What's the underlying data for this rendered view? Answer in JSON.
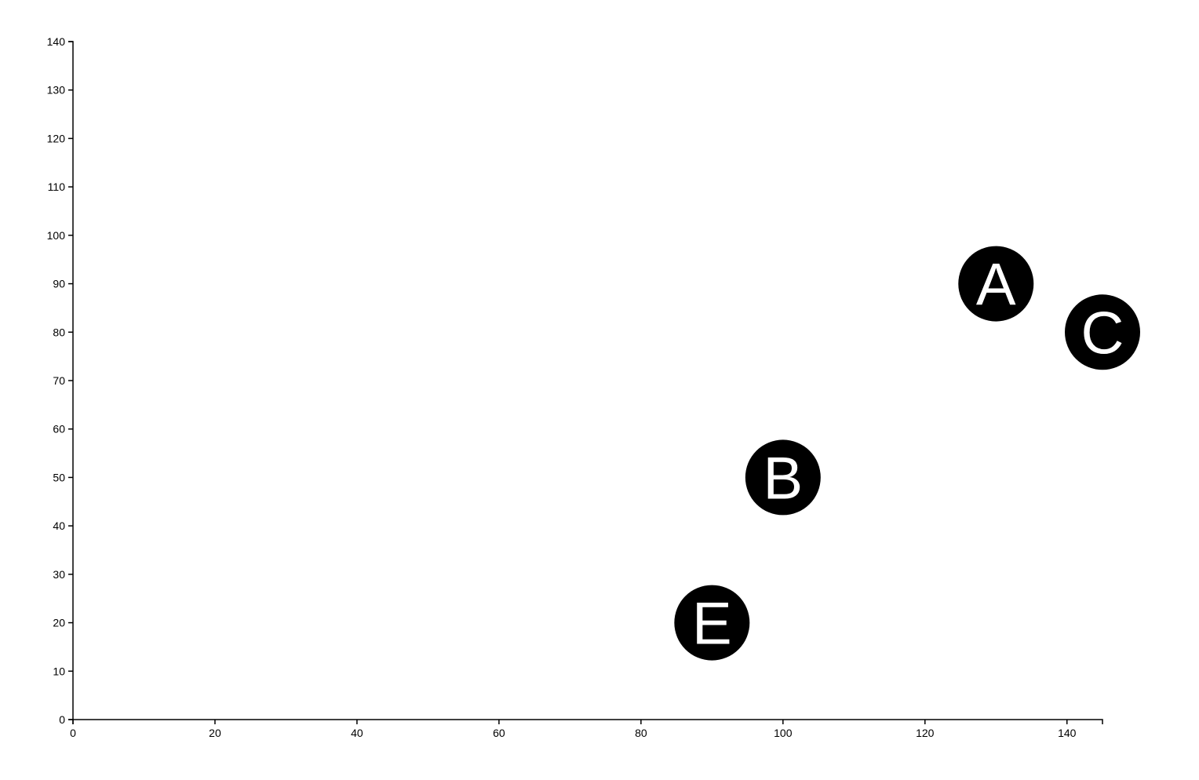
{
  "chart_data": {
    "type": "scatter",
    "title": "",
    "xlabel": "",
    "ylabel": "",
    "xlim": [
      0,
      145
    ],
    "ylim": [
      0,
      140
    ],
    "x_ticks": [
      0,
      20,
      40,
      60,
      80,
      100,
      120,
      140
    ],
    "y_ticks": [
      0,
      10,
      20,
      30,
      40,
      50,
      60,
      70,
      80,
      90,
      100,
      110,
      120,
      130,
      140
    ],
    "grid": false,
    "legend": "none",
    "points": [
      {
        "label": "A",
        "x": 130,
        "y": 90
      },
      {
        "label": "C",
        "x": 145,
        "y": 80
      },
      {
        "label": "B",
        "x": 100,
        "y": 50
      },
      {
        "label": "E",
        "x": 90,
        "y": 20
      }
    ],
    "colors": {
      "marker": "#000000",
      "marker_text": "#ffffff",
      "axis": "#000000"
    }
  }
}
